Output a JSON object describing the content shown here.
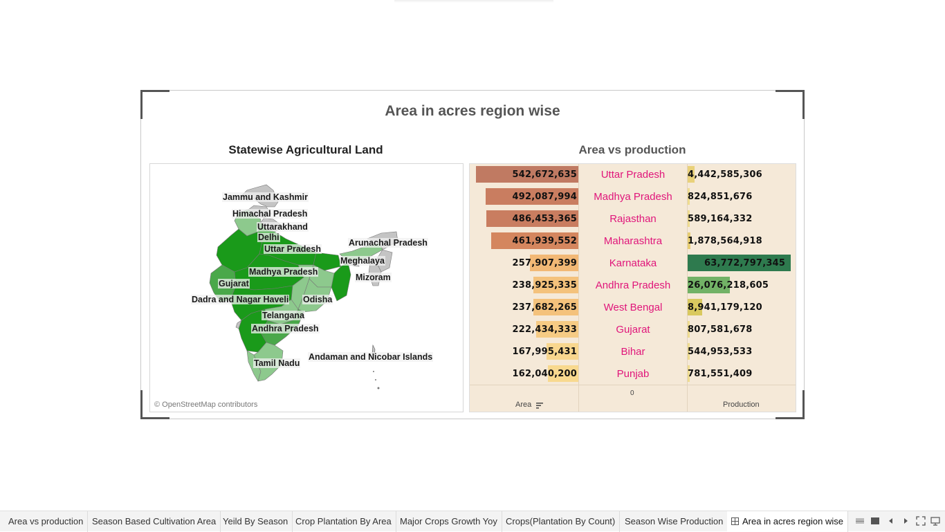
{
  "dashboard": {
    "title": "Area in acres region wise",
    "map_title": "Statewise Agricultural Land",
    "chart_title": "Area vs production"
  },
  "map": {
    "labels": [
      "Jammu and Kashmir",
      "Himachal Pradesh",
      "Uttarakhand",
      "Delhi",
      "Uttar Pradesh",
      "Arunachal Pradesh",
      "Meghalaya",
      "Madhya Pradesh",
      "Mizoram",
      "Gujarat",
      "Dadra and Nagar Haveli",
      "Odisha",
      "Telangana",
      "Andhra Pradesh",
      "Andaman and Nicobar Islands",
      "Tamil Nadu"
    ],
    "attribution": "© OpenStreetMap contributors",
    "colors": {
      "dark": "#1a9a1a",
      "mid": "#4aa84a",
      "light": "#8dc98d",
      "none": "#c4c4c4"
    }
  },
  "chart_data": {
    "type": "bar",
    "categories": [
      "Uttar Pradesh",
      "Madhya Pradesh",
      "Rajasthan",
      "Maharashtra",
      "Karnataka",
      "Andhra Pradesh",
      "West Bengal",
      "Gujarat",
      "Bihar",
      "Punjab"
    ],
    "series": [
      {
        "name": "Area",
        "values": [
          542672635,
          492087994,
          486453365,
          461939552,
          257907399,
          238925335,
          237682265,
          222434333,
          167995431,
          162040200
        ]
      },
      {
        "name": "Production",
        "values": [
          4442585306,
          824851676,
          589164332,
          1878564918,
          63772797345,
          26076218605,
          8941179120,
          807581678,
          544953533,
          781551409
        ]
      }
    ],
    "area_labels": [
      "542,672,635",
      "492,087,994",
      "486,453,365",
      "461,939,552",
      "257,907,399",
      "238,925,335",
      "237,682,265",
      "222,434,333",
      "167,995,431",
      "162,040,200"
    ],
    "production_labels": [
      "4,442,585,306",
      "824,851,676",
      "589,164,332",
      "1,878,564,918",
      "63,772,797,345",
      "26,076,218,605",
      "8,941,179,120",
      "807,581,678",
      "544,953,533",
      "781,551,409"
    ],
    "xlabel_area": "Area",
    "xlabel_production": "Production",
    "center_axis_tick": "0",
    "area_colors": [
      "#c07a62",
      "#c97d60",
      "#c97d60",
      "#d4865e",
      "#f2b875",
      "#f4c27c",
      "#f4c27c",
      "#f6cb84",
      "#f8d68e",
      "#f8d98f"
    ],
    "production_colors": [
      "#e9d17a",
      "#efdc8f",
      "#efdc8f",
      "#e7cd72",
      "#2e7a4e",
      "#72b266",
      "#d9c95f",
      "#efdc8f",
      "#efdc8f",
      "#efdc8f"
    ]
  },
  "tabs": [
    "Area vs production",
    "Season Based Cultivation Area",
    "Yeild By Season",
    "Crop Plantation By Area",
    "Major Crops Growth Yoy",
    "Crops(Plantation By Count)",
    "Season Wise Production",
    "Area in acres region wise"
  ],
  "active_tab": "Area in acres region wise",
  "controls": [
    "grid-view-icon",
    "filmstrip-view-icon",
    "prev-sheet-icon",
    "next-sheet-icon",
    "fullscreen-icon",
    "present-icon"
  ]
}
